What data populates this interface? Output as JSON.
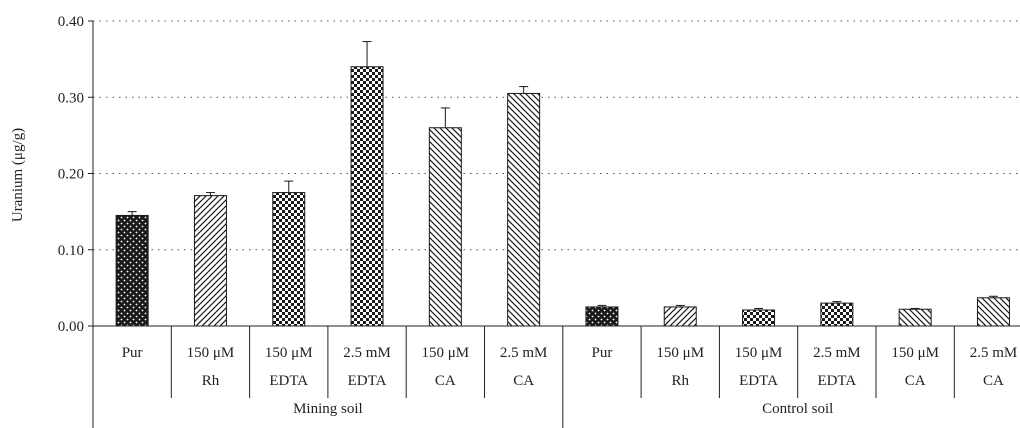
{
  "chart_data": {
    "type": "bar",
    "ylabel": "Uranium (μg/g)",
    "ylim": [
      0,
      0.4
    ],
    "yticks": [
      "0.00",
      "0.10",
      "0.20",
      "0.30",
      "0.40"
    ],
    "grid": "horizontal dotted",
    "groups": [
      {
        "name": "Mining soil",
        "bars": [
          {
            "line1": "Pur",
            "line2": "",
            "value": 0.145,
            "error": 0.005,
            "pattern": "dots"
          },
          {
            "line1": "150 μM",
            "line2": "Rh",
            "value": 0.171,
            "error": 0.004,
            "pattern": "diag-right"
          },
          {
            "line1": "150 μM",
            "line2": "EDTA",
            "value": 0.175,
            "error": 0.015,
            "pattern": "checker"
          },
          {
            "line1": "2.5 mM",
            "line2": "EDTA",
            "value": 0.34,
            "error": 0.033,
            "pattern": "checker"
          },
          {
            "line1": "150 μM",
            "line2": "CA",
            "value": 0.26,
            "error": 0.026,
            "pattern": "diag-left"
          },
          {
            "line1": "2.5 mM",
            "line2": "CA",
            "value": 0.305,
            "error": 0.009,
            "pattern": "diag-left"
          }
        ]
      },
      {
        "name": "Control soil",
        "bars": [
          {
            "line1": "Pur",
            "line2": "",
            "value": 0.025,
            "error": 0.002,
            "pattern": "dots"
          },
          {
            "line1": "150 μM",
            "line2": "Rh",
            "value": 0.025,
            "error": 0.002,
            "pattern": "diag-right"
          },
          {
            "line1": "150 μM",
            "line2": "EDTA",
            "value": 0.021,
            "error": 0.002,
            "pattern": "checker"
          },
          {
            "line1": "2.5 mM",
            "line2": "EDTA",
            "value": 0.03,
            "error": 0.002,
            "pattern": "checker"
          },
          {
            "line1": "150 μM",
            "line2": "CA",
            "value": 0.022,
            "error": 0.001,
            "pattern": "diag-left"
          },
          {
            "line1": "2.5 mM",
            "line2": "CA",
            "value": 0.037,
            "error": 0.002,
            "pattern": "diag-left"
          }
        ]
      }
    ]
  }
}
